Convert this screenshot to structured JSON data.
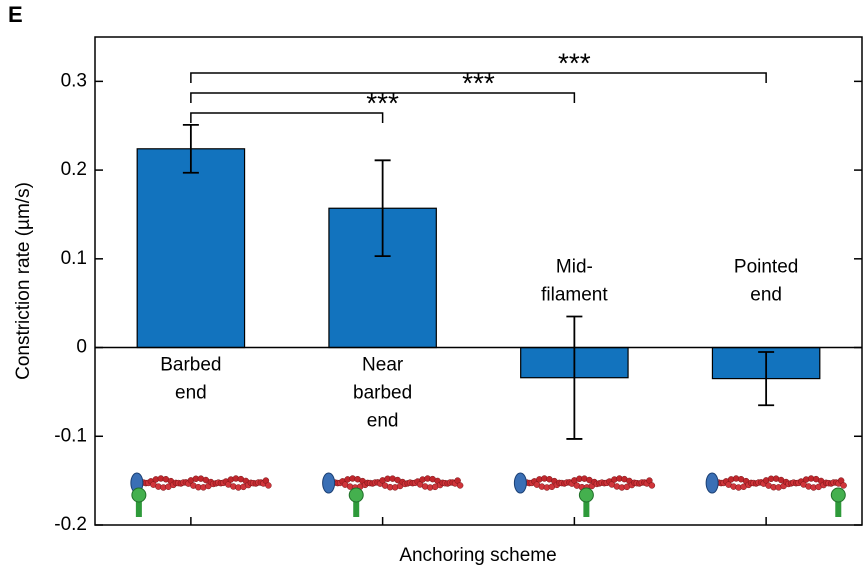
{
  "chart_data": {
    "type": "bar",
    "panel_label": "E",
    "categories": [
      [
        "Barbed",
        "end"
      ],
      [
        "Near",
        "barbed",
        "end"
      ],
      [
        "Mid-",
        "filament"
      ],
      [
        "Pointed",
        "end"
      ]
    ],
    "values": [
      0.224,
      0.157,
      -0.034,
      -0.035
    ],
    "errors": [
      0.027,
      0.054,
      0.069,
      0.03
    ],
    "color": "#1273be",
    "ylabel": "Constriction rate (µm/s)",
    "xlabel": "Anchoring scheme",
    "ylim": [
      -0.2,
      0.35
    ],
    "yticks": [
      0.3,
      0.2,
      0.1,
      0,
      -0.1,
      -0.2
    ],
    "brackets": [
      {
        "between": [
          0,
          1
        ],
        "text": "***"
      },
      {
        "between": [
          0,
          2
        ],
        "text": "***"
      },
      {
        "between": [
          0,
          3
        ],
        "text": "***"
      }
    ]
  }
}
